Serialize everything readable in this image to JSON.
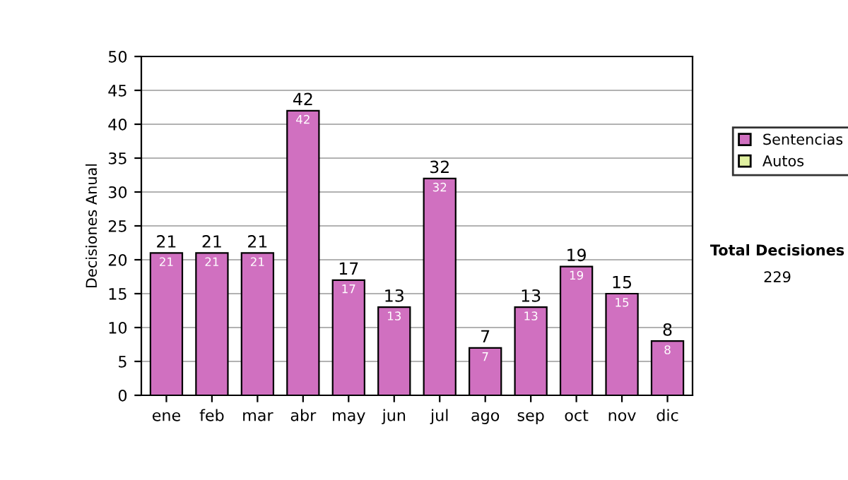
{
  "chart_data": {
    "type": "bar",
    "stacked": true,
    "ylabel": "Decisiones Anual",
    "categories": [
      "ene",
      "feb",
      "mar",
      "abr",
      "may",
      "jun",
      "jul",
      "ago",
      "sep",
      "oct",
      "nov",
      "dic"
    ],
    "series": [
      {
        "name": "Sentencias",
        "color": "#d070c0",
        "values": [
          21,
          21,
          21,
          42,
          17,
          13,
          32,
          7,
          13,
          19,
          15,
          8
        ],
        "value_labels": [
          "21",
          "21",
          "21",
          "42",
          "17",
          "13",
          "32",
          "7",
          "13",
          "19",
          "15",
          "8"
        ]
      },
      {
        "name": "Autos",
        "color": "#e0f0a0",
        "values": [
          null,
          null,
          null,
          null,
          null,
          null,
          null,
          null,
          null,
          null,
          null,
          null
        ]
      }
    ],
    "totals": [
      "21",
      "21",
      "21",
      "42",
      "17",
      "13",
      "32",
      "7",
      "13",
      "19",
      "15",
      "8"
    ],
    "ylim": [
      0,
      50
    ],
    "yticks": [
      0,
      5,
      10,
      15,
      20,
      25,
      30,
      35,
      40,
      45,
      50
    ],
    "grid": "y",
    "legend": "right",
    "annotations": [
      "Total Decisiones",
      "229"
    ]
  }
}
